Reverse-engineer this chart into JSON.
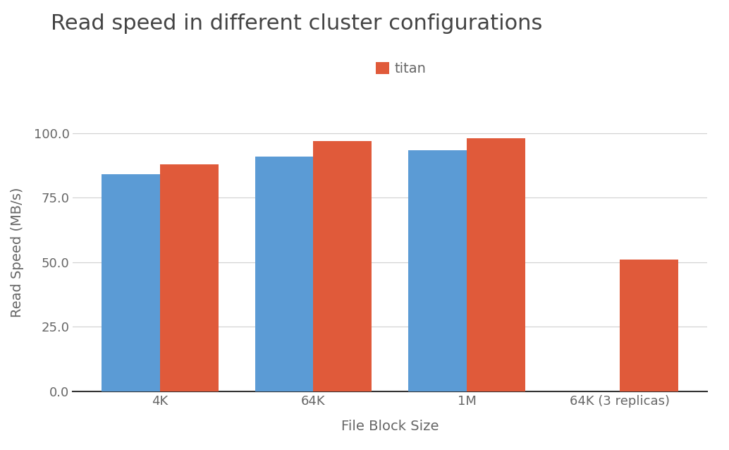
{
  "title": "Read speed in different cluster configurations",
  "xlabel": "File Block Size",
  "ylabel": "Read Speed (MB/s)",
  "categories": [
    "4K",
    "64K",
    "1M",
    "64K (3 replicas)"
  ],
  "series": [
    {
      "name": "",
      "color": "#5b9bd5",
      "values": [
        84.0,
        91.0,
        93.5,
        null
      ]
    },
    {
      "name": "titan",
      "color": "#e05a3a",
      "values": [
        88.0,
        97.0,
        98.0,
        51.0
      ]
    }
  ],
  "ylim": [
    0,
    108
  ],
  "yticks": [
    0.0,
    25.0,
    50.0,
    75.0,
    100.0
  ],
  "background_color": "#ffffff",
  "grid_color": "#d0d0d0",
  "title_fontsize": 22,
  "label_fontsize": 14,
  "tick_fontsize": 13,
  "legend_fontsize": 14,
  "bar_width": 0.38
}
